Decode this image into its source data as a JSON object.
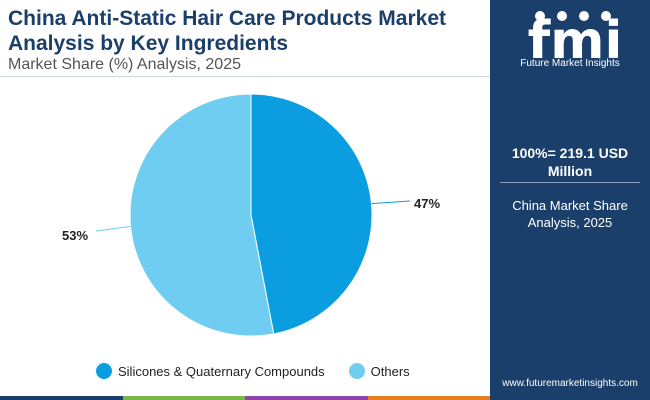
{
  "header": {
    "title": "China Anti-Static Hair Care Products Market Analysis by Key Ingredients",
    "subtitle": "Market Share (%) Analysis, 2025"
  },
  "chart_data": {
    "type": "pie",
    "title": "China Anti-Static Hair Care Products Market Analysis by Key Ingredients",
    "subtitle": "Market Share (%) Analysis, 2025",
    "categories": [
      "Silicones & Quaternary Compounds",
      "Others"
    ],
    "values": [
      47,
      53
    ],
    "labels": [
      "47%",
      "53%"
    ],
    "colors": [
      "#0a9ee0",
      "#6fcdf2"
    ],
    "legend": "bottom"
  },
  "legend": {
    "items": [
      {
        "label": "Silicones & Quaternary Compounds",
        "color": "#0a9ee0"
      },
      {
        "label": "Others",
        "color": "#6fcdf2"
      }
    ]
  },
  "panel": {
    "logo_letters": "fmi",
    "logo_text": "Future Market Insights",
    "total": "100%= 219.1 USD Million",
    "caption": "China Market Share Analysis, 2025",
    "url": "www.futuremarketinsights.com",
    "background": "#1b3f6b"
  },
  "bottom_bar_colors": [
    "#1b3f6b",
    "#7ab648",
    "#8e44ad",
    "#e67e22"
  ]
}
